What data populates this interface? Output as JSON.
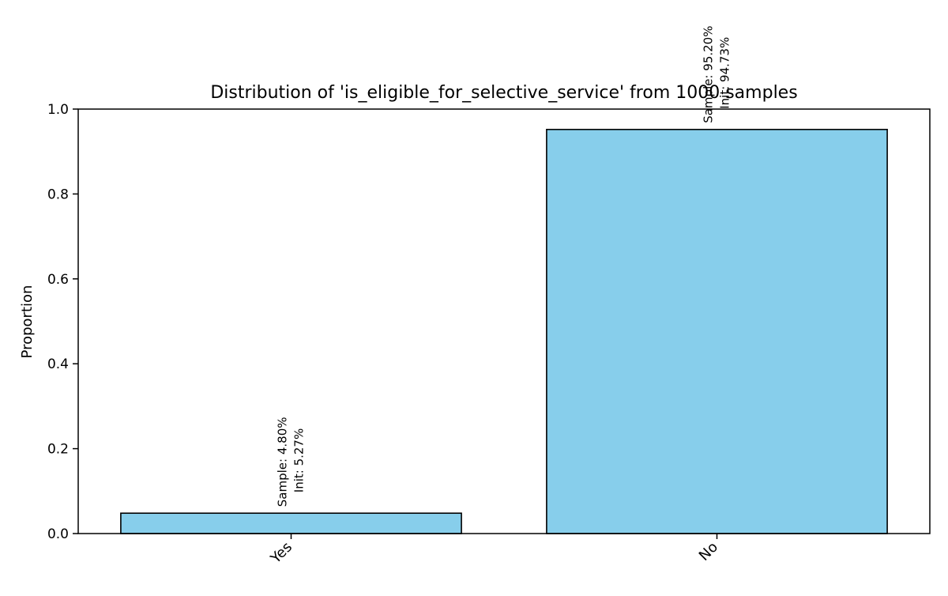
{
  "chart_data": {
    "type": "bar",
    "title": "Distribution of 'is_eligible_for_selective_service' from 1000 samples",
    "xlabel": "",
    "ylabel": "Proportion",
    "ylim": [
      0,
      1.0
    ],
    "yticks": [
      "0.0",
      "0.2",
      "0.4",
      "0.6",
      "0.8",
      "1.0"
    ],
    "categories": [
      "Yes",
      "No"
    ],
    "values": [
      0.048,
      0.952
    ],
    "bar_labels": [
      {
        "sample": "Sample: 4.80%",
        "init": "Init: 5.27%"
      },
      {
        "sample": "Sample: 95.20%",
        "init": "Init: 94.73%"
      }
    ],
    "grid": false,
    "legend": "none",
    "colors": {
      "bar_fill": "#87ceeb",
      "bar_edge": "#000000",
      "axis": "#000000"
    }
  }
}
